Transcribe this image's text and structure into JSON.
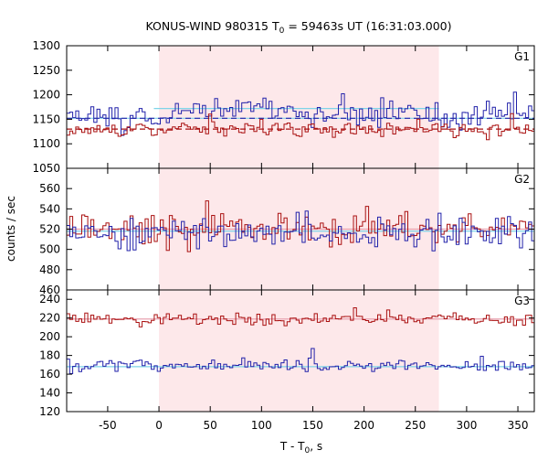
{
  "chart_data": {
    "type": "line",
    "title": "KONUS-WIND 980315 T",
    "title_sub": "0",
    "title_rest": " = 59463s UT (16:31:03.000)",
    "xlabel": "T - T",
    "xlabel_sub": "0",
    "xlabel_rest": ", s",
    "ylabel": "counts / sec",
    "xlim": [
      -90,
      366
    ],
    "xticks": [
      -50,
      0,
      50,
      100,
      150,
      200,
      250,
      300,
      350
    ],
    "highlight_interval": [
      0,
      273
    ],
    "highlight_color": "#fde8ea",
    "colors": {
      "blue": "#2222aa",
      "red": "#aa1111",
      "bg_blue": "#7fd4e8",
      "bg_red": "#e8a3b0"
    },
    "panels": [
      {
        "label": "G1",
        "ylim": [
          1050,
          1300
        ],
        "yticks": [
          1050,
          1100,
          1150,
          1200,
          1250,
          1300
        ],
        "series": [
          {
            "color": "blue",
            "base": 1155,
            "bump": 18,
            "noise": 22,
            "seed": 3
          },
          {
            "color": "red",
            "base": 1128,
            "bump": 6,
            "noise": 12,
            "seed": 7
          }
        ],
        "backgrounds": [
          {
            "color": "bg_blue",
            "style": "solid",
            "value": 1152,
            "x0": -90,
            "x1": 366
          },
          {
            "color": "bg_blue",
            "style": "solid",
            "value": 1172,
            "x0": -5,
            "x1": 273
          },
          {
            "color": "blue",
            "style": "dashed",
            "value": 1152,
            "x0": -90,
            "x1": 366
          },
          {
            "color": "red",
            "style": "dashed",
            "value": 1130,
            "x0": -90,
            "x1": 366
          }
        ]
      },
      {
        "label": "G2",
        "ylim": [
          460,
          580
        ],
        "yticks": [
          460,
          480,
          500,
          520,
          540,
          560
        ],
        "series": [
          {
            "color": "red",
            "base": 520,
            "bump": 0,
            "noise": 14,
            "seed": 11
          },
          {
            "color": "blue",
            "base": 517,
            "bump": 0,
            "noise": 14,
            "seed": 19
          }
        ],
        "backgrounds": [
          {
            "color": "bg_blue",
            "style": "solid",
            "value": 518,
            "x0": -90,
            "x1": 366
          },
          {
            "color": "bg_red",
            "style": "solid",
            "value": 520,
            "x0": -90,
            "x1": 366
          }
        ]
      },
      {
        "label": "G3",
        "ylim": [
          120,
          250
        ],
        "yticks": [
          120,
          140,
          160,
          180,
          200,
          220,
          240
        ],
        "series": [
          {
            "color": "red",
            "base": 219,
            "bump": 0,
            "noise": 6,
            "seed": 23
          },
          {
            "color": "blue",
            "base": 169,
            "bump": 0,
            "noise": 6,
            "seed": 29
          }
        ],
        "backgrounds": [
          {
            "color": "bg_red",
            "style": "solid",
            "value": 219,
            "x0": -90,
            "x1": 366
          },
          {
            "color": "bg_blue",
            "style": "solid",
            "value": 168,
            "x0": -90,
            "x1": 366
          }
        ]
      }
    ]
  }
}
